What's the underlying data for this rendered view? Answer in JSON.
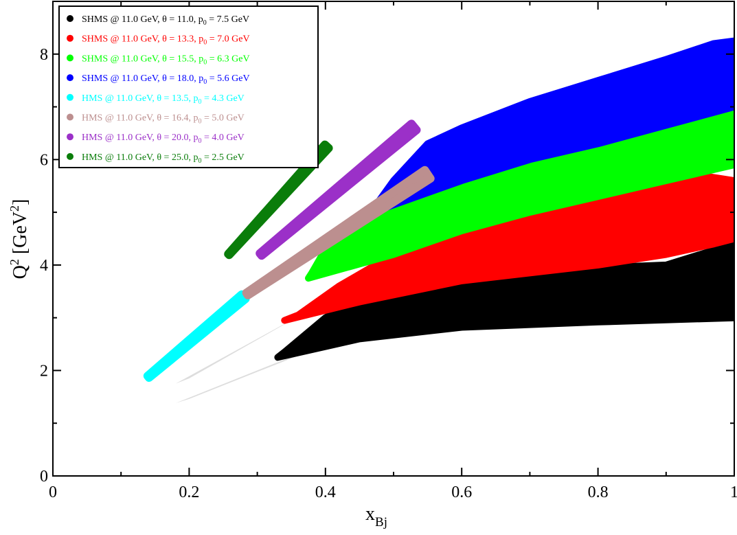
{
  "chart_data": {
    "type": "scatter",
    "title": "",
    "xlabel": "x_Bj",
    "xlabel_main": "x",
    "xlabel_sub": "Bj",
    "ylabel": "Q^2 [GeV^2]",
    "ylabel_main": "Q",
    "ylabel_sup": "2",
    "ylabel_unit_open": " [GeV",
    "ylabel_unit_sup": "2",
    "ylabel_unit_close": "]",
    "xlim": [
      0,
      1
    ],
    "ylim": [
      0,
      9
    ],
    "xticks": [
      0,
      0.2,
      0.4,
      0.6,
      0.8,
      1
    ],
    "xtick_labels": [
      "0",
      "0.2",
      "0.4",
      "0.6",
      "0.8",
      "1"
    ],
    "yticks": [
      0,
      2,
      4,
      6,
      8
    ],
    "ytick_labels": [
      "0",
      "2",
      "4",
      "6",
      "8"
    ],
    "grid": false,
    "legend_position": "top-left",
    "series": [
      {
        "name": "SHMS @ 11.0 GeV, θ = 11.0, p0 = 7.5 GeV",
        "legend": {
          "pre": "SHMS @ 11.0 GeV, θ = 11.0, p",
          "sub": "0",
          "post": " = 7.5 GeV"
        },
        "color": "#000000",
        "kind": "acceptance",
        "polygon": [
          [
            0.33,
            2.25
          ],
          [
            0.45,
            2.6
          ],
          [
            0.6,
            2.82
          ],
          [
            0.8,
            2.92
          ],
          [
            1.0,
            3.0
          ],
          [
            1.0,
            4.4
          ],
          [
            0.95,
            4.2
          ],
          [
            0.9,
            4.0
          ],
          [
            0.8,
            3.95
          ],
          [
            0.6,
            3.9
          ],
          [
            0.5,
            3.75
          ],
          [
            0.4,
            3.0
          ],
          [
            0.34,
            2.35
          ]
        ]
      },
      {
        "name": "SHMS @ 11.0 GeV, θ = 13.3, p0 = 7.0 GeV",
        "legend": {
          "pre": "SHMS @ 11.0 GeV, θ = 13.3, p",
          "sub": "0",
          "post": " = 7.0 GeV"
        },
        "color": "#ff0000",
        "kind": "acceptance",
        "polygon": [
          [
            0.34,
            2.95
          ],
          [
            0.45,
            3.3
          ],
          [
            0.6,
            3.7
          ],
          [
            0.8,
            4.0
          ],
          [
            0.9,
            4.2
          ],
          [
            0.97,
            4.4
          ],
          [
            1.0,
            4.5
          ],
          [
            1.0,
            5.6
          ],
          [
            0.95,
            5.7
          ],
          [
            0.9,
            5.6
          ],
          [
            0.8,
            5.3
          ],
          [
            0.7,
            5.0
          ],
          [
            0.6,
            4.65
          ],
          [
            0.5,
            4.2
          ],
          [
            0.42,
            3.6
          ],
          [
            0.36,
            3.05
          ]
        ]
      },
      {
        "name": "SHMS @ 11.0 GeV, θ = 15.5, p0 = 6.3 GeV",
        "legend": {
          "pre": "SHMS @ 11.0 GeV, θ = 15.5, p",
          "sub": "0",
          "post": " = 6.3 GeV"
        },
        "color": "#00ff00",
        "kind": "acceptance",
        "polygon": [
          [
            0.375,
            3.75
          ],
          [
            0.5,
            4.2
          ],
          [
            0.6,
            4.65
          ],
          [
            0.7,
            5.0
          ],
          [
            0.8,
            5.3
          ],
          [
            0.9,
            5.6
          ],
          [
            1.0,
            5.9
          ],
          [
            1.0,
            6.95
          ],
          [
            0.95,
            6.8
          ],
          [
            0.9,
            6.65
          ],
          [
            0.8,
            6.35
          ],
          [
            0.7,
            6.15
          ],
          [
            0.6,
            5.8
          ],
          [
            0.5,
            5.3
          ],
          [
            0.45,
            4.9
          ],
          [
            0.4,
            4.3
          ],
          [
            0.38,
            3.85
          ]
        ]
      },
      {
        "name": "SHMS @ 11.0 GeV, θ = 18.0, p0 = 5.6 GeV",
        "legend": {
          "pre": "SHMS @ 11.0 GeV, θ = 18.0, p",
          "sub": "0",
          "post": " = 5.6 GeV"
        },
        "color": "#0000ff",
        "kind": "acceptance",
        "polygon": [
          [
            0.48,
            5.05
          ],
          [
            0.6,
            5.6
          ],
          [
            0.7,
            6.0
          ],
          [
            0.8,
            6.3
          ],
          [
            0.9,
            6.65
          ],
          [
            1.0,
            7.0
          ],
          [
            1.0,
            8.25
          ],
          [
            0.97,
            8.2
          ],
          [
            0.9,
            7.9
          ],
          [
            0.8,
            7.5
          ],
          [
            0.7,
            7.1
          ],
          [
            0.6,
            6.6
          ],
          [
            0.55,
            6.3
          ],
          [
            0.5,
            5.6
          ],
          [
            0.475,
            5.15
          ]
        ]
      },
      {
        "name": "HMS @ 11.0 GeV, θ = 13.5, p0 = 4.3 GeV",
        "legend": {
          "pre": "HMS @ 11.0 GeV, θ = 13.5, p",
          "sub": "0",
          "post": " = 4.3 GeV"
        },
        "color": "#00ffff",
        "kind": "band",
        "band": {
          "x1": 0.14,
          "y1": 1.88,
          "x2": 0.28,
          "y2": 3.4,
          "w1": 0.08,
          "w2": 0.2
        }
      },
      {
        "name": "HMS @ 11.0 GeV, θ = 16.4, p0 = 5.0 GeV",
        "legend": {
          "pre": "HMS @ 11.0 GeV, θ = 16.4, p",
          "sub": "0",
          "post": " = 5.0 GeV"
        },
        "color": "#bc8f8f",
        "kind": "band",
        "band": {
          "x1": 0.285,
          "y1": 3.45,
          "x2": 0.55,
          "y2": 5.72,
          "w1": 0.1,
          "w2": 0.35
        }
      },
      {
        "name": "HMS @ 11.0 GeV, θ = 20.0, p0 = 4.0 GeV",
        "legend": {
          "pre": "HMS @ 11.0 GeV, θ = 20.0, p",
          "sub": "0",
          "post": " = 4.0 GeV"
        },
        "color": "#9b30c8",
        "kind": "band",
        "band": {
          "x1": 0.305,
          "y1": 4.2,
          "x2": 0.53,
          "y2": 6.62,
          "w1": 0.1,
          "w2": 0.28
        }
      },
      {
        "name": "HMS @ 11.0 GeV, θ = 25.0, p0 = 2.5 GeV",
        "legend": {
          "pre": "HMS @ 11.0 GeV, θ = 25.0, p",
          "sub": "0",
          "post": " = 2.5 GeV"
        },
        "color": "#0a7d0a",
        "kind": "band",
        "band": {
          "x1": 0.258,
          "y1": 4.2,
          "x2": 0.402,
          "y2": 6.25,
          "w1": 0.05,
          "w2": 0.18
        }
      }
    ],
    "gray_bands": [
      {
        "color": "#dddddd",
        "polygon": [
          [
            0.18,
            1.75
          ],
          [
            0.85,
            6.5
          ],
          [
            0.8,
            6.05
          ],
          [
            0.5,
            4.05
          ],
          [
            0.2,
            1.85
          ]
        ]
      },
      {
        "color": "#dddddd",
        "polygon": [
          [
            0.18,
            1.38
          ],
          [
            0.87,
            4.95
          ],
          [
            0.8,
            4.5
          ],
          [
            0.5,
            3.0
          ],
          [
            0.2,
            1.46
          ]
        ]
      }
    ]
  }
}
